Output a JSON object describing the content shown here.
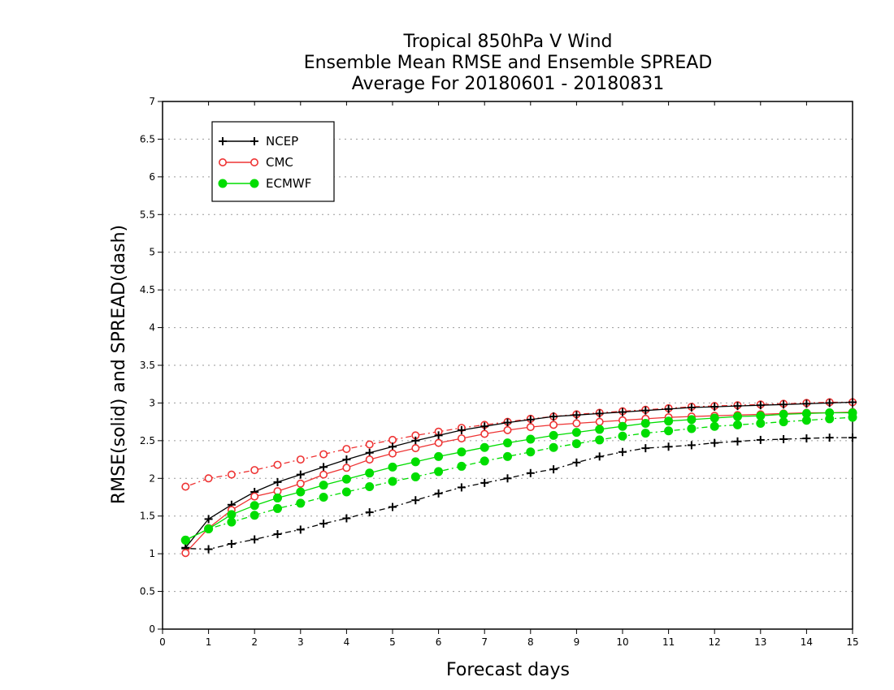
{
  "chart_data": {
    "type": "line",
    "title_lines": [
      "Tropical 850hPa V Wind",
      "Ensemble Mean RMSE and Ensemble SPREAD",
      "Average For 20180601 - 20180831"
    ],
    "xlabel": "Forecast days",
    "ylabel": "RMSE(solid) and SPREAD(dash)",
    "xlim": [
      0,
      15
    ],
    "ylim": [
      0,
      7
    ],
    "xticks": [
      "0",
      "1",
      "2",
      "3",
      "4",
      "5",
      "6",
      "7",
      "8",
      "9",
      "10",
      "11",
      "12",
      "13",
      "14",
      "15"
    ],
    "yticks": [
      "0",
      "0.5",
      "1",
      "1.5",
      "2",
      "2.5",
      "3",
      "3.5",
      "4",
      "4.5",
      "5",
      "5.5",
      "6",
      "6.5",
      "7"
    ],
    "ygrid": true,
    "legend_position": "top-left",
    "x": [
      0.5,
      1,
      1.5,
      2,
      2.5,
      3,
      3.5,
      4,
      4.5,
      5,
      5.5,
      6,
      6.5,
      7,
      7.5,
      8,
      8.5,
      9,
      9.5,
      10,
      10.5,
      11,
      11.5,
      12,
      12.5,
      13,
      13.5,
      14,
      14.5,
      15
    ],
    "series": [
      {
        "name": "NCEP",
        "color": "#000000",
        "marker": "plus",
        "rmse": [
          1.08,
          1.46,
          1.65,
          1.82,
          1.95,
          2.05,
          2.15,
          2.25,
          2.34,
          2.42,
          2.5,
          2.57,
          2.64,
          2.69,
          2.74,
          2.78,
          2.82,
          2.84,
          2.86,
          2.88,
          2.9,
          2.92,
          2.94,
          2.95,
          2.96,
          2.97,
          2.98,
          2.99,
          3.0,
          3.01
        ],
        "spread": [
          1.07,
          1.06,
          1.13,
          1.19,
          1.26,
          1.32,
          1.4,
          1.47,
          1.55,
          1.62,
          1.71,
          1.8,
          1.88,
          1.94,
          2.0,
          2.07,
          2.12,
          2.21,
          2.29,
          2.35,
          2.4,
          2.42,
          2.44,
          2.47,
          2.49,
          2.51,
          2.52,
          2.53,
          2.54,
          2.54
        ]
      },
      {
        "name": "CMC",
        "color": "#ee3333",
        "marker": "open-circle",
        "rmse": [
          1.01,
          1.34,
          1.58,
          1.76,
          1.83,
          1.93,
          2.05,
          2.14,
          2.25,
          2.33,
          2.4,
          2.47,
          2.53,
          2.59,
          2.64,
          2.68,
          2.71,
          2.73,
          2.75,
          2.77,
          2.79,
          2.81,
          2.82,
          2.83,
          2.84,
          2.85,
          2.86,
          2.87,
          2.87,
          2.88
        ],
        "spread": [
          1.89,
          2.0,
          2.05,
          2.11,
          2.18,
          2.25,
          2.32,
          2.39,
          2.45,
          2.51,
          2.57,
          2.62,
          2.67,
          2.71,
          2.75,
          2.79,
          2.82,
          2.85,
          2.87,
          2.89,
          2.91,
          2.93,
          2.95,
          2.96,
          2.97,
          2.98,
          2.99,
          3.0,
          3.01,
          3.01
        ]
      },
      {
        "name": "ECMWF",
        "color": "#00dd00",
        "marker": "filled-circle",
        "rmse": [
          1.18,
          1.33,
          1.52,
          1.64,
          1.74,
          1.82,
          1.91,
          1.99,
          2.07,
          2.15,
          2.22,
          2.29,
          2.35,
          2.41,
          2.47,
          2.52,
          2.57,
          2.61,
          2.65,
          2.69,
          2.73,
          2.76,
          2.78,
          2.8,
          2.82,
          2.83,
          2.85,
          2.86,
          2.87,
          2.87
        ],
        "spread": [
          1.18,
          1.33,
          1.42,
          1.51,
          1.6,
          1.67,
          1.75,
          1.82,
          1.89,
          1.96,
          2.02,
          2.09,
          2.16,
          2.23,
          2.29,
          2.35,
          2.41,
          2.46,
          2.51,
          2.56,
          2.6,
          2.63,
          2.66,
          2.69,
          2.71,
          2.73,
          2.75,
          2.77,
          2.79,
          2.81
        ]
      }
    ]
  }
}
